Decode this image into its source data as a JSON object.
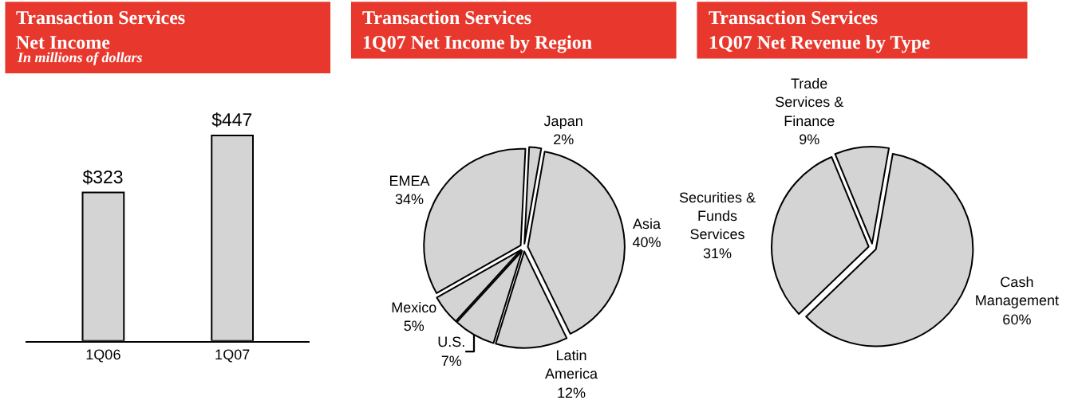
{
  "chart_data": [
    {
      "type": "bar",
      "title": "Transaction Services\nNet Income",
      "subtitle": "In millions of dollars",
      "categories": [
        "1Q06",
        "1Q07"
      ],
      "values": [
        323,
        447
      ],
      "value_labels": [
        "$323",
        "$447"
      ],
      "color": "#d4d4d4"
    },
    {
      "type": "pie",
      "title": "Transaction Services\n1Q07 Net Income by Region",
      "categories": [
        "Asia",
        "Latin\nAmerica",
        "U.S.",
        "Mexico",
        "EMEA",
        "Japan"
      ],
      "values": [
        40,
        12,
        7,
        5,
        34,
        2
      ],
      "value_labels": [
        "40%",
        "12%",
        "7%",
        "5%",
        "34%",
        "2%"
      ],
      "colors": [
        "#d4d4d4",
        "#d4d4d4",
        "#d4d4d4",
        "#d4d4d4",
        "#d4d4d4",
        "#d4d4d4"
      ]
    },
    {
      "type": "pie",
      "title": "Transaction Services\n1Q07 Net Revenue by Type",
      "categories": [
        "Cash\nManagement",
        "Securities &\nFunds\nServices",
        "Trade\nServices &\nFinance"
      ],
      "values": [
        60,
        31,
        9
      ],
      "value_labels": [
        "60%",
        "31%",
        "9%"
      ],
      "colors": [
        "#d4d4d4",
        "#d4d4d4",
        "#d4d4d4"
      ]
    }
  ]
}
